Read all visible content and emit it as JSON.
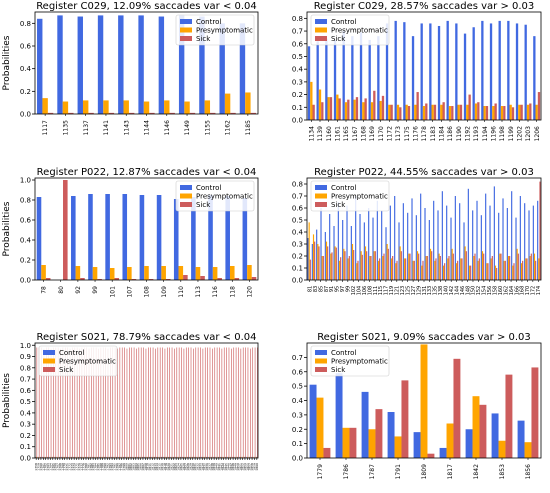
{
  "colors": {
    "Control": "#4169e1",
    "Presymptomatic": "#ffa500",
    "Sick": "#cd5c5c"
  },
  "chart_data": [
    {
      "type": "bar",
      "title": "Register C029, 12.09% saccades var < 0.04",
      "ylabel": "Probabilities",
      "xlabel": "",
      "ylim": [
        0,
        0.9
      ],
      "yticks": [
        0.0,
        0.2,
        0.4,
        0.6,
        0.8
      ],
      "legend": "top-right",
      "categories": [
        "1117",
        "1135",
        "1137",
        "1141",
        "1143",
        "1144",
        "1146",
        "1149",
        "1155",
        "1162",
        "1185"
      ],
      "series": [
        {
          "name": "Control",
          "values": [
            0.84,
            0.87,
            0.86,
            0.87,
            0.87,
            0.87,
            0.86,
            0.87,
            0.86,
            0.8,
            0.8
          ]
        },
        {
          "name": "Presymptomatic",
          "values": [
            0.14,
            0.11,
            0.12,
            0.12,
            0.12,
            0.11,
            0.12,
            0.11,
            0.12,
            0.18,
            0.19
          ]
        },
        {
          "name": "Sick",
          "values": [
            0.01,
            0.01,
            0.01,
            0.01,
            0.01,
            0.01,
            0.01,
            0.01,
            0.01,
            0.01,
            0.01
          ]
        }
      ]
    },
    {
      "type": "bar",
      "title": "Register C029, 28.57% saccades var > 0.03",
      "ylabel": "",
      "xlabel": "",
      "ylim": [
        0,
        0.85
      ],
      "yticks": [
        0.0,
        0.1,
        0.2,
        0.3,
        0.4,
        0.5,
        0.6,
        0.7,
        0.8
      ],
      "legend": "top-left",
      "categories": [
        "1134",
        "1139",
        "1160",
        "1161",
        "1165",
        "1167",
        "1168",
        "1169",
        "1170",
        "1172",
        "1173",
        "1175",
        "1176",
        "1178",
        "1183",
        "1184",
        "1186",
        "1190",
        "1192",
        "1193",
        "1194",
        "1196",
        "1198",
        "1199",
        "1202",
        "1203",
        "1206"
      ],
      "series": [
        {
          "name": "Control",
          "values": [
            0.58,
            0.62,
            0.64,
            0.63,
            0.7,
            0.66,
            0.69,
            0.63,
            0.66,
            0.76,
            0.78,
            0.77,
            0.66,
            0.76,
            0.76,
            0.74,
            0.78,
            0.76,
            0.68,
            0.73,
            0.78,
            0.76,
            0.78,
            0.78,
            0.76,
            0.75,
            0.66
          ]
        },
        {
          "name": "Presymptomatic",
          "values": [
            0.3,
            0.24,
            0.18,
            0.2,
            0.14,
            0.16,
            0.14,
            0.14,
            0.15,
            0.12,
            0.12,
            0.12,
            0.12,
            0.11,
            0.12,
            0.12,
            0.11,
            0.12,
            0.12,
            0.13,
            0.11,
            0.11,
            0.11,
            0.12,
            0.12,
            0.12,
            0.12
          ]
        },
        {
          "name": "Sick",
          "values": [
            0.12,
            0.14,
            0.18,
            0.17,
            0.16,
            0.18,
            0.17,
            0.23,
            0.19,
            0.12,
            0.1,
            0.11,
            0.22,
            0.13,
            0.12,
            0.14,
            0.11,
            0.12,
            0.2,
            0.14,
            0.11,
            0.13,
            0.11,
            0.1,
            0.12,
            0.13,
            0.22
          ]
        }
      ]
    },
    {
      "type": "bar",
      "title": "Register P022, 12.87% saccades var < 0.04",
      "ylabel": "Probabilities",
      "xlabel": "",
      "ylim": [
        0,
        1.02
      ],
      "yticks": [
        0.0,
        0.2,
        0.4,
        0.6,
        0.8,
        1.0
      ],
      "legend": "top-right",
      "categories": [
        "78",
        "80",
        "92",
        "99",
        "101",
        "107",
        "108",
        "109",
        "110",
        "113",
        "116",
        "118",
        "120"
      ],
      "series": [
        {
          "name": "Control",
          "values": [
            0.83,
            0.0,
            0.84,
            0.86,
            0.86,
            0.86,
            0.85,
            0.85,
            0.81,
            0.83,
            0.85,
            0.84,
            0.82
          ]
        },
        {
          "name": "Presymptomatic",
          "values": [
            0.15,
            0.0,
            0.14,
            0.13,
            0.12,
            0.13,
            0.14,
            0.14,
            0.14,
            0.13,
            0.13,
            0.14,
            0.15
          ]
        },
        {
          "name": "Sick",
          "values": [
            0.02,
            1.0,
            0.02,
            0.01,
            0.02,
            0.01,
            0.01,
            0.01,
            0.05,
            0.04,
            0.02,
            0.02,
            0.03
          ]
        }
      ]
    },
    {
      "type": "bar",
      "title": "Register P022, 44.55% saccades var > 0.03",
      "ylabel": "",
      "xlabel": "",
      "ylim": [
        0,
        0.85
      ],
      "yticks": [
        0.0,
        0.1,
        0.2,
        0.3,
        0.4,
        0.5,
        0.6,
        0.7,
        0.8
      ],
      "legend": "top-left",
      "categories": [
        "81",
        "84",
        "85",
        "86",
        "87",
        "88",
        "89",
        "90",
        "91",
        "93",
        "94",
        "95",
        "96",
        "97",
        "98",
        "100",
        "102",
        "103",
        "104",
        "105",
        "106",
        "111",
        "112",
        "114",
        "115",
        "117",
        "119",
        "121",
        "122",
        "123",
        "124",
        "125",
        "126",
        "127",
        "128",
        "129",
        "130",
        "131",
        "132",
        "133",
        "134",
        "135",
        "136",
        "137",
        "138",
        "139",
        "140",
        "141",
        "142",
        "143",
        "144",
        "145",
        "146",
        "147"
      ],
      "xtick_labels_shown": [
        "81",
        "83",
        "85",
        "87",
        "91",
        "95",
        "97",
        "99",
        "102",
        "104",
        "106",
        "108",
        "111",
        "115",
        "117",
        "119",
        "121",
        "123",
        "125",
        "127",
        "129",
        "131",
        "133",
        "135",
        "138",
        "140",
        "142",
        "144",
        "146",
        "148",
        "150",
        "152",
        "154",
        "156",
        "158",
        "160",
        "162",
        "164",
        "166",
        "168",
        "170",
        "172",
        "174"
      ],
      "series": [
        {
          "name": "Control",
          "values": [
            0.35,
            0.3,
            0.42,
            0.6,
            0.4,
            0.55,
            0.45,
            0.65,
            0.5,
            0.62,
            0.45,
            0.7,
            0.55,
            0.48,
            0.6,
            0.52,
            0.66,
            0.58,
            0.44,
            0.62,
            0.7,
            0.48,
            0.64,
            0.56,
            0.68,
            0.54,
            0.72,
            0.6,
            0.5,
            0.66,
            0.58,
            0.74,
            0.62,
            0.52,
            0.7,
            0.64,
            0.48,
            0.76,
            0.58,
            0.66,
            0.54,
            0.72,
            0.62,
            0.78,
            0.56,
            0.68,
            0.6,
            0.74,
            0.52,
            0.7,
            0.64,
            0.58,
            0.62,
            0.66
          ]
        },
        {
          "name": "Presymptomatic",
          "values": [
            0.48,
            0.38,
            0.3,
            0.2,
            0.32,
            0.22,
            0.28,
            0.16,
            0.26,
            0.18,
            0.3,
            0.14,
            0.24,
            0.28,
            0.2,
            0.24,
            0.16,
            0.2,
            0.3,
            0.18,
            0.14,
            0.28,
            0.18,
            0.22,
            0.16,
            0.24,
            0.12,
            0.2,
            0.26,
            0.16,
            0.22,
            0.12,
            0.18,
            0.26,
            0.14,
            0.18,
            0.28,
            0.12,
            0.2,
            0.16,
            0.24,
            0.14,
            0.18,
            0.12,
            0.22,
            0.16,
            0.2,
            0.12,
            0.26,
            0.14,
            0.18,
            0.2,
            0.22,
            0.18
          ]
        },
        {
          "name": "Sick",
          "values": [
            0.17,
            0.32,
            0.28,
            0.2,
            0.28,
            0.23,
            0.27,
            0.19,
            0.24,
            0.2,
            0.25,
            0.16,
            0.21,
            0.24,
            0.2,
            0.24,
            0.18,
            0.22,
            0.26,
            0.2,
            0.16,
            0.24,
            0.18,
            0.22,
            0.16,
            0.22,
            0.16,
            0.2,
            0.24,
            0.18,
            0.2,
            0.14,
            0.2,
            0.22,
            0.16,
            0.18,
            0.24,
            0.12,
            0.22,
            0.18,
            0.22,
            0.14,
            0.2,
            0.1,
            0.22,
            0.16,
            0.2,
            0.14,
            0.22,
            0.16,
            0.18,
            0.22,
            0.16,
            0.82
          ]
        }
      ]
    },
    {
      "type": "bar",
      "title": "Register S021, 78.79% saccades var < 0.04",
      "ylabel": "Probabilities",
      "xlabel": "",
      "ylim": [
        0,
        1.02
      ],
      "yticks": [
        0.0,
        0.1,
        0.2,
        0.3,
        0.4,
        0.5,
        0.6,
        0.7,
        0.8,
        0.9,
        1.0
      ],
      "legend": "top-left",
      "categories": [
        "1758",
        "1759",
        "1760",
        "1761",
        "1762",
        "1763",
        "1764",
        "1765",
        "1766",
        "1767",
        "1768",
        "1769",
        "1770",
        "1771",
        "1772",
        "1773",
        "1774",
        "1775",
        "1776",
        "1777",
        "1778",
        "1780",
        "1781",
        "1782",
        "1783",
        "1784",
        "1785",
        "1788",
        "1789",
        "1790",
        "1792",
        "1793",
        "1794",
        "1795",
        "1796",
        "1797",
        "1798",
        "1799",
        "1800",
        "1801",
        "1802",
        "1803",
        "1804",
        "1805",
        "1806",
        "1807",
        "1808",
        "1810",
        "1811",
        "1812",
        "1813",
        "1814",
        "1815",
        "1816",
        "1818",
        "1819",
        "1820",
        "1821",
        "1822",
        "1823",
        "1824",
        "1825",
        "1826",
        "1827",
        "1828",
        "1829",
        "1830",
        "1831",
        "1832",
        "1833",
        "1834",
        "1835",
        "1836",
        "1837",
        "1838",
        "1839",
        "1840",
        "1841",
        "1843",
        "1844",
        "1845",
        "1846",
        "1847",
        "1848",
        "1849",
        "1850",
        "1851",
        "1852",
        "1854",
        "1855",
        "1857",
        "1858",
        "1859",
        "1860"
      ],
      "series": [
        {
          "name": "Control",
          "values": [
            0.01,
            0.01,
            0.01,
            0.01,
            0.01,
            0.01,
            0.01,
            0.01,
            0.01,
            0.01,
            0.01,
            0.01,
            0.01,
            0.01,
            0.01,
            0.01,
            0.01,
            0.01,
            0.01,
            0.01,
            0.01,
            0.01,
            0.01,
            0.01,
            0.01,
            0.01,
            0.01,
            0.01,
            0.01,
            0.01,
            0.01,
            0.01,
            0.01,
            0.01,
            0.01,
            0.01,
            0.01,
            0.01,
            0.01,
            0.01,
            0.01,
            0.01,
            0.01,
            0.01,
            0.01,
            0.01,
            0.01,
            0.01,
            0.01,
            0.01,
            0.01,
            0.01,
            0.01,
            0.01,
            0.01,
            0.01,
            0.01,
            0.01,
            0.01,
            0.01,
            0.01,
            0.01,
            0.01,
            0.01,
            0.01,
            0.01,
            0.01,
            0.01,
            0.01,
            0.01,
            0.01,
            0.01,
            0.01,
            0.01,
            0.01,
            0.01,
            0.01,
            0.01,
            0.01,
            0.01,
            0.01,
            0.01,
            0.01,
            0.01,
            0.01,
            0.01,
            0.01,
            0.01,
            0.01,
            0.01,
            0.01,
            0.01,
            0.01,
            0.01
          ]
        },
        {
          "name": "Presymptomatic",
          "values": [
            0.01,
            0.01,
            0.01,
            0.01,
            0.01,
            0.01,
            0.01,
            0.01,
            0.01,
            0.01,
            0.01,
            0.01,
            0.01,
            0.01,
            0.01,
            0.01,
            0.01,
            0.01,
            0.01,
            0.01,
            0.01,
            0.01,
            0.01,
            0.01,
            0.01,
            0.01,
            0.01,
            0.01,
            0.01,
            0.01,
            0.01,
            0.01,
            0.01,
            0.01,
            0.01,
            0.01,
            0.01,
            0.01,
            0.01,
            0.01,
            0.01,
            0.01,
            0.01,
            0.01,
            0.01,
            0.01,
            0.01,
            0.01,
            0.01,
            0.01,
            0.01,
            0.01,
            0.01,
            0.01,
            0.01,
            0.01,
            0.01,
            0.01,
            0.01,
            0.01,
            0.01,
            0.01,
            0.01,
            0.01,
            0.01,
            0.01,
            0.01,
            0.01,
            0.01,
            0.01,
            0.01,
            0.01,
            0.01,
            0.01,
            0.01,
            0.01,
            0.01,
            0.01,
            0.01,
            0.01,
            0.01,
            0.01,
            0.01,
            0.01,
            0.01,
            0.01,
            0.01,
            0.01,
            0.01,
            0.01,
            0.01,
            0.01,
            0.01,
            0.01
          ]
        },
        {
          "name": "Sick",
          "values": [
            0.98,
            0.98,
            0.98,
            0.97,
            0.98,
            0.98,
            0.97,
            0.98,
            0.98,
            0.98,
            0.97,
            0.98,
            0.98,
            0.98,
            0.97,
            0.98,
            0.98,
            0.98,
            0.97,
            0.98,
            0.98,
            0.98,
            0.97,
            0.98,
            0.98,
            0.98,
            0.97,
            0.98,
            0.98,
            0.98,
            0.97,
            0.98,
            0.98,
            0.98,
            0.97,
            0.98,
            0.98,
            0.98,
            0.97,
            0.98,
            0.98,
            0.98,
            0.97,
            0.98,
            0.98,
            0.98,
            0.97,
            0.98,
            0.98,
            0.98,
            0.97,
            0.98,
            0.98,
            0.98,
            0.97,
            0.98,
            0.98,
            0.98,
            0.97,
            0.98,
            0.98,
            0.98,
            0.97,
            0.98,
            0.98,
            0.98,
            0.97,
            0.98,
            0.98,
            0.98,
            0.97,
            0.98,
            0.98,
            0.98,
            0.97,
            0.98,
            0.98,
            0.98,
            0.97,
            0.98,
            0.98,
            0.98,
            0.97,
            0.98,
            0.98,
            0.98,
            0.97,
            0.98,
            0.98,
            0.98,
            0.97,
            0.98,
            0.98,
            0.98
          ]
        }
      ]
    },
    {
      "type": "bar",
      "title": "Register S021, 9.09% saccades var > 0.03",
      "ylabel": "",
      "xlabel": "",
      "ylim": [
        0,
        0.8
      ],
      "yticks": [
        0.0,
        0.1,
        0.2,
        0.3,
        0.4,
        0.5,
        0.6,
        0.7
      ],
      "legend": "top-left",
      "categories": [
        "1779",
        "1786",
        "1787",
        "1791",
        "1809",
        "1817",
        "1842",
        "1853",
        "1856"
      ],
      "series": [
        {
          "name": "Control",
          "values": [
            0.51,
            0.59,
            0.46,
            0.32,
            0.18,
            0.07,
            0.2,
            0.31,
            0.26
          ]
        },
        {
          "name": "Presymptomatic",
          "values": [
            0.42,
            0.21,
            0.2,
            0.15,
            0.79,
            0.24,
            0.43,
            0.12,
            0.11
          ]
        },
        {
          "name": "Sick",
          "values": [
            0.07,
            0.21,
            0.34,
            0.54,
            0.03,
            0.69,
            0.37,
            0.58,
            0.63
          ]
        }
      ]
    }
  ]
}
